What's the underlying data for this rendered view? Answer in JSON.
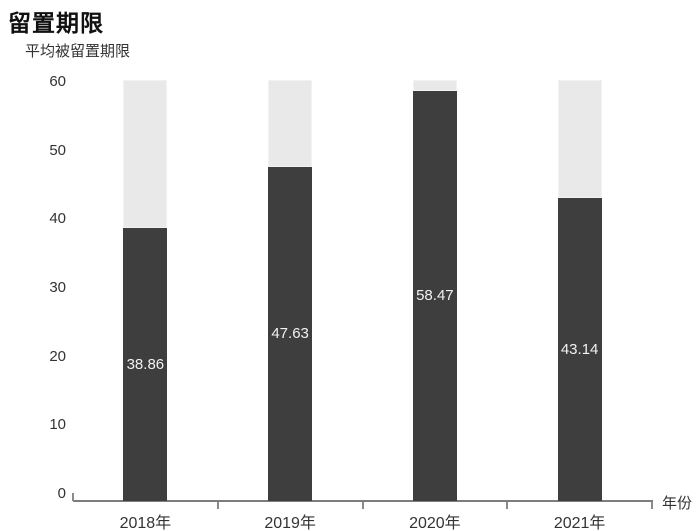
{
  "chart": {
    "title": "留置期限",
    "subtitle": "平均被留置期限",
    "x_axis_title": "年份"
  },
  "chart_data": {
    "type": "bar",
    "title": "留置期限",
    "subtitle": "平均被留置期限",
    "xlabel": "年份",
    "ylabel": "",
    "categories": [
      "2018年",
      "2019年",
      "2020年",
      "2021年"
    ],
    "values": [
      38.86,
      47.63,
      58.47,
      43.14
    ],
    "data_labels": [
      "38.86",
      "47.63",
      "58.47",
      "43.14"
    ],
    "ylim": [
      0,
      60
    ],
    "yticks": [
      0,
      10,
      20,
      30,
      40,
      50,
      60
    ],
    "background_bar_to": 60,
    "grid": false,
    "legend": "none",
    "colors": {
      "bar": "#3e3e3e",
      "background_bar": "#e9e9e9",
      "value_label": "#f2f2f2",
      "axis": "#7d7d7d",
      "text": "#333333",
      "title": "#111111"
    }
  }
}
